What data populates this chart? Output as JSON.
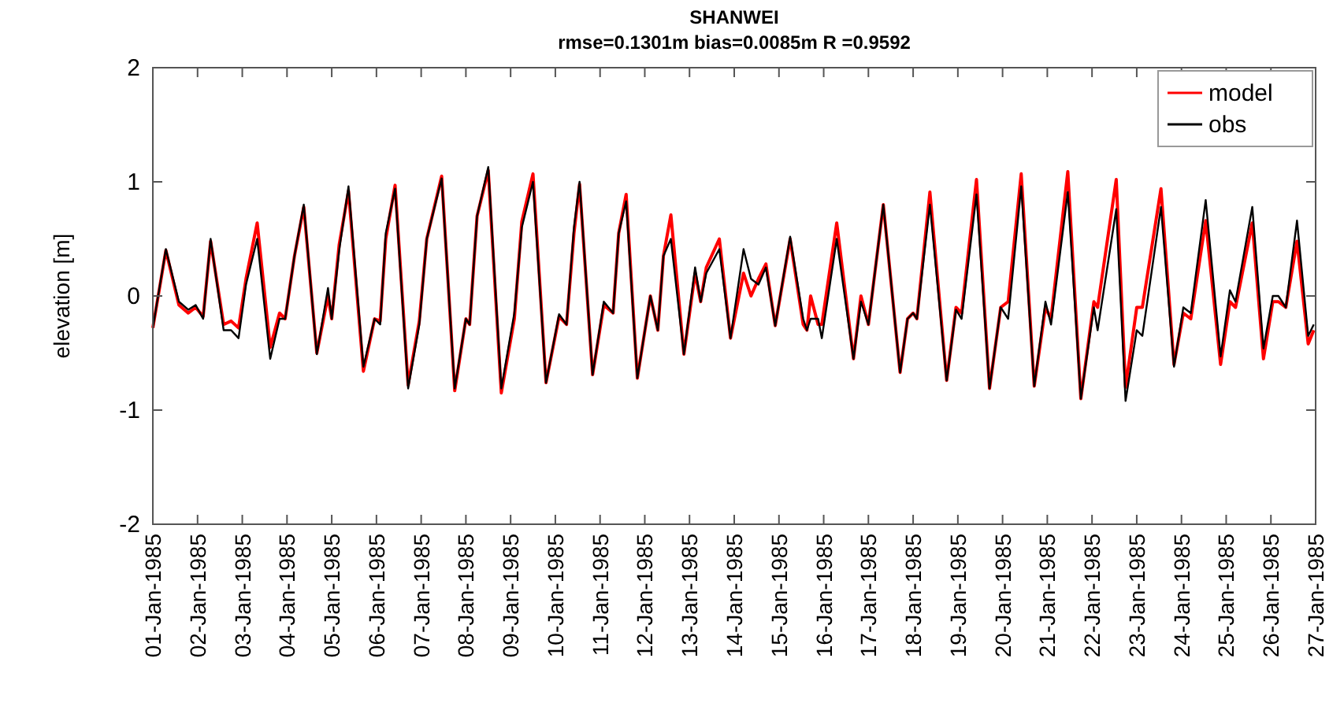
{
  "chart_data": {
    "type": "line",
    "title": "SHANWEI",
    "subtitle": "rmse=0.1301m bias=0.0085m R =0.9592",
    "ylabel": "elevation [m]",
    "xlim": [
      "1985-01-01",
      "1985-01-27"
    ],
    "xticks": [
      {
        "value": "1985-01-01",
        "label": "01-Jan-1985"
      },
      {
        "value": "1985-01-02",
        "label": "02-Jan-1985"
      },
      {
        "value": "1985-01-03",
        "label": "03-Jan-1985"
      },
      {
        "value": "1985-01-04",
        "label": "04-Jan-1985"
      },
      {
        "value": "1985-01-05",
        "label": "05-Jan-1985"
      },
      {
        "value": "1985-01-06",
        "label": "06-Jan-1985"
      },
      {
        "value": "1985-01-07",
        "label": "07-Jan-1985"
      },
      {
        "value": "1985-01-08",
        "label": "08-Jan-1985"
      },
      {
        "value": "1985-01-09",
        "label": "09-Jan-1985"
      },
      {
        "value": "1985-01-10",
        "label": "10-Jan-1985"
      },
      {
        "value": "1985-01-11",
        "label": "11-Jan-1985"
      },
      {
        "value": "1985-01-12",
        "label": "12-Jan-1985"
      },
      {
        "value": "1985-01-13",
        "label": "13-Jan-1985"
      },
      {
        "value": "1985-01-14",
        "label": "14-Jan-1985"
      },
      {
        "value": "1985-01-15",
        "label": "15-Jan-1985"
      },
      {
        "value": "1985-01-16",
        "label": "16-Jan-1985"
      },
      {
        "value": "1985-01-17",
        "label": "17-Jan-1985"
      },
      {
        "value": "1985-01-18",
        "label": "18-Jan-1985"
      },
      {
        "value": "1985-01-19",
        "label": "19-Jan-1985"
      },
      {
        "value": "1985-01-20",
        "label": "20-Jan-1985"
      },
      {
        "value": "1985-01-21",
        "label": "21-Jan-1985"
      },
      {
        "value": "1985-01-22",
        "label": "22-Jan-1985"
      },
      {
        "value": "1985-01-23",
        "label": "23-Jan-1985"
      },
      {
        "value": "1985-01-24",
        "label": "24-Jan-1985"
      },
      {
        "value": "1985-01-25",
        "label": "25-Jan-1985"
      },
      {
        "value": "1985-01-26",
        "label": "26-Jan-1985"
      },
      {
        "value": "1985-01-27",
        "label": "27-Jan-1985"
      }
    ],
    "ylim": [
      -2,
      2
    ],
    "yticks": [
      -2,
      -1,
      0,
      1,
      2
    ],
    "grid": false,
    "legend": "top right",
    "x": [
      "1985-01-01T00:00",
      "1985-01-01T07:00",
      "1985-01-01T14:00",
      "1985-01-01T19:00",
      "1985-01-01T23:00",
      "1985-01-02T03:00",
      "1985-01-02T07:00",
      "1985-01-02T14:00",
      "1985-01-02T18:00",
      "1985-01-02T22:00",
      "1985-01-03T02:00",
      "1985-01-03T08:00",
      "1985-01-03T15:00",
      "1985-01-03T20:00",
      "1985-01-03T23:00",
      "1985-01-04T04:00",
      "1985-01-04T09:00",
      "1985-01-04T16:00",
      "1985-01-04T22:00",
      "1985-01-05T00:00",
      "1985-01-05T04:00",
      "1985-01-05T09:00",
      "1985-01-05T17:00",
      "1985-01-05T23:00",
      "1985-01-06T02:00",
      "1985-01-06T05:00",
      "1985-01-06T10:00",
      "1985-01-06T17:00",
      "1985-01-06T23:00",
      "1985-01-07T03:00",
      "1985-01-07T11:00",
      "1985-01-07T18:00",
      "1985-01-08T00:00",
      "1985-01-08T02:00",
      "1985-01-08T06:00",
      "1985-01-08T12:00",
      "1985-01-08T19:00",
      "1985-01-09T02:00",
      "1985-01-09T06:00",
      "1985-01-09T12:00",
      "1985-01-09T19:00",
      "1985-01-10T02:00",
      "1985-01-10T06:00",
      "1985-01-10T10:00",
      "1985-01-10T13:00",
      "1985-01-10T20:00",
      "1985-01-11T02:00",
      "1985-01-11T07:00",
      "1985-01-11T10:00",
      "1985-01-11T14:00",
      "1985-01-11T20:00",
      "1985-01-12T03:00",
      "1985-01-12T07:00",
      "1985-01-12T10:00",
      "1985-01-12T14:00",
      "1985-01-12T21:00",
      "1985-01-13T03:00",
      "1985-01-13T06:00",
      "1985-01-13T09:00",
      "1985-01-13T16:00",
      "1985-01-13T22:00",
      "1985-01-14T05:00",
      "1985-01-14T09:00",
      "1985-01-14T13:00",
      "1985-01-14T17:00",
      "1985-01-14T22:00",
      "1985-01-15T06:00",
      "1985-01-15T13:00",
      "1985-01-15T15:00",
      "1985-01-15T17:00",
      "1985-01-15T21:00",
      "1985-01-15T23:00",
      "1985-01-16T07:00",
      "1985-01-16T16:00",
      "1985-01-16T20:00",
      "1985-01-17T00:00",
      "1985-01-17T08:00",
      "1985-01-17T17:00",
      "1985-01-17T21:00",
      "1985-01-18T00:00",
      "1985-01-18T02:00",
      "1985-01-18T09:00",
      "1985-01-18T18:00",
      "1985-01-18T23:00",
      "1985-01-19T02:00",
      "1985-01-19T10:00",
      "1985-01-19T17:00",
      "1985-01-19T23:00",
      "1985-01-20T03:00",
      "1985-01-20T10:00",
      "1985-01-20T17:00",
      "1985-01-20T23:00",
      "1985-01-21T02:00",
      "1985-01-21T11:00",
      "1985-01-21T18:00",
      "1985-01-22T01:00",
      "1985-01-22T03:00",
      "1985-01-22T13:00",
      "1985-01-22T18:00",
      "1985-01-23T00:00",
      "1985-01-23T03:00",
      "1985-01-23T13:00",
      "1985-01-23T20:00",
      "1985-01-24T01:00",
      "1985-01-24T05:00",
      "1985-01-24T13:00",
      "1985-01-24T21:00",
      "1985-01-25T02:00",
      "1985-01-25T05:00",
      "1985-01-25T14:00",
      "1985-01-25T20:00",
      "1985-01-26T01:00",
      "1985-01-26T04:00",
      "1985-01-26T08:00",
      "1985-01-26T14:00",
      "1985-01-26T20:00",
      "1985-01-26T23:00"
    ],
    "series": [
      {
        "name": "model",
        "color": "#ff0000",
        "values": [
          -0.28,
          0.4,
          -0.08,
          -0.15,
          -0.1,
          -0.18,
          0.48,
          -0.25,
          -0.22,
          -0.28,
          0.15,
          0.64,
          -0.45,
          -0.15,
          -0.2,
          0.35,
          0.78,
          -0.5,
          0.0,
          -0.2,
          0.45,
          0.92,
          -0.66,
          -0.2,
          -0.22,
          0.5,
          0.97,
          -0.78,
          -0.22,
          0.5,
          1.05,
          -0.83,
          -0.2,
          -0.25,
          0.7,
          1.1,
          -0.85,
          -0.2,
          0.65,
          1.07,
          -0.76,
          -0.18,
          -0.25,
          0.55,
          0.98,
          -0.69,
          -0.08,
          -0.15,
          0.55,
          0.89,
          -0.72,
          0.0,
          -0.3,
          0.35,
          0.71,
          -0.51,
          0.2,
          -0.05,
          0.25,
          0.5,
          -0.37,
          0.2,
          0.0,
          0.15,
          0.28,
          -0.26,
          0.5,
          -0.25,
          -0.3,
          0.0,
          -0.25,
          -0.25,
          0.64,
          -0.55,
          0.0,
          -0.25,
          0.8,
          -0.67,
          -0.2,
          -0.15,
          -0.2,
          0.91,
          -0.74,
          -0.1,
          -0.15,
          1.02,
          -0.81,
          -0.1,
          -0.05,
          1.07,
          -0.79,
          -0.1,
          -0.2,
          1.09,
          -0.9,
          -0.05,
          -0.1,
          1.02,
          -0.8,
          -0.1,
          -0.1,
          0.94,
          -0.6,
          -0.15,
          -0.2,
          0.66,
          -0.6,
          -0.05,
          -0.1,
          0.64,
          -0.55,
          -0.05,
          -0.05,
          -0.1,
          0.48,
          -0.42,
          -0.3
        ]
      },
      {
        "name": "obs",
        "color": "#000000",
        "values": [
          -0.28,
          0.41,
          -0.05,
          -0.12,
          -0.08,
          -0.2,
          0.5,
          -0.3,
          -0.3,
          -0.37,
          0.1,
          0.5,
          -0.55,
          -0.2,
          -0.2,
          0.35,
          0.8,
          -0.51,
          0.07,
          -0.2,
          0.4,
          0.96,
          -0.62,
          -0.2,
          -0.25,
          0.55,
          0.94,
          -0.81,
          -0.25,
          0.5,
          1.03,
          -0.81,
          -0.2,
          -0.25,
          0.7,
          1.13,
          -0.81,
          -0.15,
          0.6,
          1.0,
          -0.76,
          -0.16,
          -0.25,
          0.6,
          1.0,
          -0.69,
          -0.05,
          -0.15,
          0.55,
          0.83,
          -0.72,
          0.0,
          -0.3,
          0.35,
          0.5,
          -0.51,
          0.25,
          -0.05,
          0.2,
          0.41,
          -0.37,
          0.41,
          0.15,
          0.1,
          0.25,
          -0.26,
          0.52,
          -0.2,
          -0.3,
          -0.2,
          -0.2,
          -0.37,
          0.5,
          -0.55,
          -0.05,
          -0.25,
          0.8,
          -0.67,
          -0.2,
          -0.15,
          -0.2,
          0.8,
          -0.74,
          -0.12,
          -0.2,
          0.89,
          -0.81,
          -0.1,
          -0.2,
          0.96,
          -0.79,
          -0.05,
          -0.25,
          0.91,
          -0.9,
          -0.1,
          -0.3,
          0.76,
          -0.92,
          -0.3,
          -0.35,
          0.78,
          -0.62,
          -0.1,
          -0.15,
          0.84,
          -0.53,
          0.05,
          -0.05,
          0.78,
          -0.46,
          0.0,
          0.0,
          -0.1,
          0.66,
          -0.35,
          -0.25
        ]
      }
    ]
  }
}
